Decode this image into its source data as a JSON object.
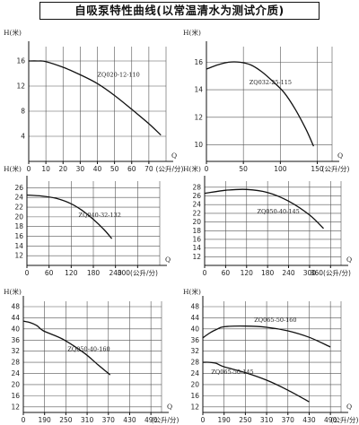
{
  "title": "自吸泵特性曲线(以常温清水为测试介质)",
  "chart_data": [
    {
      "type": "line",
      "y_axis_label": "H(米)",
      "x_unit": "(公升/分)",
      "x_axis_letter": "Q",
      "x_ticks": [
        "0",
        "10",
        "20",
        "30",
        "40",
        "50",
        "60",
        "70"
      ],
      "x_tick_values": [
        0,
        10,
        20,
        30,
        40,
        50,
        60,
        70
      ],
      "xlim": [
        0,
        80
      ],
      "y_ticks": [
        "4",
        "8",
        "12",
        "16"
      ],
      "y_tick_values": [
        4,
        8,
        12,
        16
      ],
      "ylim": [
        0,
        18
      ],
      "series": [
        {
          "name": "ZQ020-12-110",
          "x": [
            0,
            5,
            10,
            20,
            30,
            40,
            50,
            60,
            70,
            77
          ],
          "y": [
            16.0,
            16.0,
            15.9,
            15.0,
            13.8,
            12.4,
            10.5,
            8.3,
            6.0,
            4.2
          ],
          "label_at": [
            40,
            13.5
          ]
        }
      ]
    },
    {
      "type": "line",
      "y_axis_label": "H(米)",
      "x_unit": "(公升/分)",
      "x_axis_letter": "Q",
      "x_ticks": [
        "0",
        "50",
        "100",
        "150"
      ],
      "x_tick_values": [
        0,
        50,
        100,
        150
      ],
      "xlim": [
        0,
        170
      ],
      "y_ticks": [
        "10",
        "12",
        "14",
        "16"
      ],
      "y_tick_values": [
        10,
        12,
        14,
        16
      ],
      "ylim": [
        8.8,
        17
      ],
      "series": [
        {
          "name": "ZQ032-25-115",
          "x": [
            0,
            15,
            30,
            45,
            60,
            75,
            90,
            105,
            120,
            135,
            145
          ],
          "y": [
            15.5,
            15.8,
            16.0,
            16.0,
            15.8,
            15.3,
            14.6,
            13.8,
            12.6,
            11.1,
            9.9
          ],
          "label_at": [
            58,
            14.4
          ]
        }
      ]
    },
    {
      "type": "line",
      "y_axis_label": "H(米)",
      "x_unit": "",
      "x_axis_letter": "Q",
      "x_ticks": [
        "0",
        "60",
        "120",
        "180",
        "240",
        "300(公升/分)"
      ],
      "x_tick_values": [
        0,
        60,
        120,
        180,
        240,
        300
      ],
      "xlim": [
        0,
        360
      ],
      "y_ticks": [
        "12",
        "14",
        "16",
        "18",
        "20",
        "22",
        "24",
        "26"
      ],
      "y_tick_values": [
        12,
        14,
        16,
        18,
        20,
        22,
        24,
        26
      ],
      "ylim": [
        10,
        27
      ],
      "series": [
        {
          "name": "ZQ040-32-132",
          "x": [
            0,
            40,
            80,
            120,
            150,
            180,
            210,
            230
          ],
          "y": [
            24.5,
            24.3,
            23.8,
            22.7,
            21.3,
            19.5,
            17.3,
            15.5
          ],
          "label_at": [
            140,
            20.0
          ]
        }
      ]
    },
    {
      "type": "line",
      "y_axis_label": "H(米)",
      "x_unit": "",
      "x_axis_letter": "Q",
      "x_ticks": [
        "0",
        "60",
        "120",
        "180",
        "240",
        "300",
        "360(公升/分)"
      ],
      "x_tick_values": [
        0,
        60,
        120,
        180,
        240,
        300,
        360
      ],
      "xlim": [
        0,
        390
      ],
      "y_ticks": [
        "12",
        "14",
        "16",
        "18",
        "20",
        "22",
        "24",
        "26",
        "28"
      ],
      "y_tick_values": [
        12,
        14,
        16,
        18,
        20,
        22,
        24,
        26,
        28
      ],
      "ylim": [
        10,
        29
      ],
      "series": [
        {
          "name": "ZQ050-40-145",
          "x": [
            0,
            60,
            120,
            180,
            240,
            300,
            340
          ],
          "y": [
            26.6,
            27.3,
            27.5,
            26.8,
            24.8,
            21.6,
            18.5
          ],
          "label_at": [
            150,
            22.0
          ]
        }
      ]
    },
    {
      "type": "line",
      "y_axis_label": "H(米)",
      "x_unit": "(公升/分)",
      "x_axis_letter": "Q",
      "x_ticks": [
        "0",
        "190",
        "250",
        "310",
        "370",
        "430",
        "490"
      ],
      "x_tick_values": [
        0,
        190,
        250,
        310,
        370,
        430,
        490
      ],
      "xlim": [
        0,
        520
      ],
      "y_ticks": [
        "12",
        "16",
        "20",
        "24",
        "28",
        "32",
        "36",
        "40",
        "44",
        "48"
      ],
      "y_tick_values": [
        12,
        16,
        20,
        24,
        28,
        32,
        36,
        40,
        44,
        48
      ],
      "ylim": [
        10,
        48
      ],
      "series": [
        {
          "name": "ZQ050-40-160",
          "x": [
            0,
            60,
            120,
            180,
            240,
            300,
            340,
            375
          ],
          "y": [
            42.8,
            42.3,
            41.2,
            39.3,
            36.4,
            31.5,
            27.2,
            23.5
          ],
          "label_at": [
            255,
            32.0
          ]
        }
      ]
    },
    {
      "type": "line",
      "y_axis_label": "H(米)",
      "x_unit": "(公升/分)",
      "x_axis_letter": "Q",
      "x_ticks": [
        "0",
        "190",
        "250",
        "310",
        "370",
        "430",
        "490"
      ],
      "x_tick_values": [
        0,
        190,
        250,
        310,
        370,
        430,
        490
      ],
      "xlim": [
        0,
        520
      ],
      "y_ticks": [
        "12",
        "16",
        "20",
        "24",
        "28",
        "32",
        "36",
        "40",
        "44",
        "48"
      ],
      "y_tick_values": [
        12,
        16,
        20,
        24,
        28,
        32,
        36,
        40,
        44,
        48
      ],
      "ylim": [
        10,
        48
      ],
      "series": [
        {
          "name": "ZQ065-50-160",
          "x": [
            0,
            60,
            120,
            190,
            250,
            310,
            370,
            430,
            490
          ],
          "y": [
            36.8,
            38.5,
            39.8,
            40.8,
            41.0,
            40.6,
            39.3,
            37.0,
            33.5
          ],
          "label_at": [
            275,
            42.5
          ]
        },
        {
          "name": "ZQ065-50-145",
          "x": [
            0,
            60,
            120,
            190,
            250,
            310,
            370,
            430
          ],
          "y": [
            28.0,
            28.0,
            27.6,
            26.4,
            24.3,
            21.6,
            18.0,
            13.8
          ],
          "label_at": [
            75,
            23.8
          ]
        }
      ]
    }
  ]
}
